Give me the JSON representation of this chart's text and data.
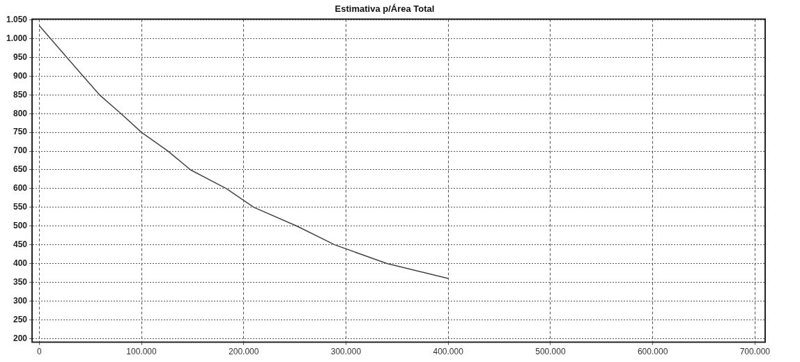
{
  "chart_data": {
    "type": "line",
    "title": "Estimativa p/Área Total",
    "x": [
      0,
      27000,
      43000,
      59000,
      80000,
      100000,
      126000,
      148000,
      183000,
      210000,
      252000,
      289000,
      340000,
      400000
    ],
    "series": [
      {
        "color": "#444444",
        "values": [
          1035,
          950,
          900,
          850,
          800,
          750,
          700,
          650,
          600,
          550,
          500,
          450,
          400,
          360
        ]
      }
    ],
    "xlim": [
      -7000,
      710000
    ],
    "xticks": [
      {
        "value": 0,
        "label": "0"
      },
      {
        "value": 100000,
        "label": "100.000"
      },
      {
        "value": 200000,
        "label": "200.000"
      },
      {
        "value": 300000,
        "label": "300.000"
      },
      {
        "value": 400000,
        "label": "400.000"
      },
      {
        "value": 500000,
        "label": "500.000"
      },
      {
        "value": 600000,
        "label": "600.000"
      },
      {
        "value": 700000,
        "label": "700.000"
      }
    ],
    "ylim": [
      190,
      1052
    ],
    "yticks": [
      200,
      250,
      300,
      350,
      400,
      450,
      500,
      550,
      600,
      650,
      700,
      750,
      800,
      850,
      900,
      950,
      {
        "value": 1000,
        "label": "1.000"
      },
      {
        "value": 1050,
        "label": "1.050"
      }
    ],
    "grid": true,
    "legend": false,
    "marker": "none",
    "line_style": "solid"
  }
}
